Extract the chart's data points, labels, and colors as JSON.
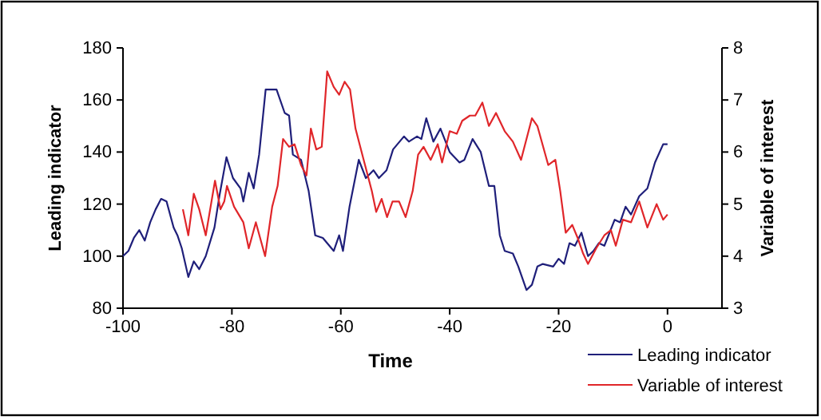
{
  "chart_data": {
    "type": "line",
    "xlabel": "Time",
    "ylabel": "Leading indicator",
    "y2label": "Variable of interest",
    "xlim": [
      -100,
      10
    ],
    "xticks": [
      -100,
      -80,
      -60,
      -40,
      -20,
      0
    ],
    "ylim": [
      80,
      180
    ],
    "yticks": [
      80,
      100,
      120,
      140,
      160,
      180
    ],
    "y2lim": [
      3,
      8
    ],
    "y2ticks": [
      3,
      4,
      5,
      6,
      7,
      8
    ],
    "grid": false,
    "legend": "bottom right",
    "line_style": "solid",
    "marker": "none",
    "series": [
      {
        "name": "Leading indicator",
        "color": "#1f1f7a",
        "x": [
          -100,
          -99,
          -98,
          -97,
          -96,
          -95,
          -94,
          -93,
          -92,
          -90.7,
          -90,
          -89.2,
          -88,
          -87,
          -86,
          -84.8,
          -83.2,
          -82.3,
          -81,
          -79.8,
          -78.4,
          -77.9,
          -76.9,
          -76,
          -75,
          -73.8,
          -71.8,
          -70.3,
          -69.5,
          -68.8,
          -67.3,
          -65.9,
          -64.7,
          -63.3,
          -61.3,
          -60.3,
          -59.6,
          -58.4,
          -56.7,
          -55.4,
          -54,
          -53,
          -51.6,
          -50.4,
          -48.4,
          -47.5,
          -46,
          -45.2,
          -44.3,
          -43,
          -41.7,
          -40,
          -38.2,
          -37.3,
          -35.8,
          -34.3,
          -32.8,
          -31.8,
          -30.8,
          -29.9,
          -28.4,
          -27.4,
          -25.9,
          -24.9,
          -23.9,
          -22.9,
          -21,
          -20,
          -19,
          -18,
          -17,
          -15.8,
          -14.6,
          -13.6,
          -12.6,
          -11.6,
          -9.7,
          -8.7,
          -7.7,
          -6.7,
          -5.2,
          -3.7,
          -2.3,
          -0.8,
          0
        ],
        "values": [
          100,
          102,
          107,
          110,
          106,
          113,
          118,
          122,
          121,
          111,
          108,
          103,
          92,
          98,
          95,
          100,
          111,
          123,
          138,
          130,
          126,
          121,
          132,
          126,
          139,
          164,
          164,
          155,
          154,
          139,
          137,
          125,
          108,
          107,
          102,
          108,
          102,
          119,
          137,
          130,
          133,
          130,
          133,
          141,
          146,
          144,
          146,
          145,
          153,
          144,
          149,
          140,
          136,
          137,
          145,
          140,
          127,
          127,
          108,
          102,
          101,
          96,
          87,
          89,
          96,
          97,
          96,
          99,
          97,
          105,
          104,
          109,
          100,
          102,
          105,
          104,
          114,
          113,
          119,
          116,
          123,
          126,
          136,
          143,
          143
        ]
      },
      {
        "name": "Variable of interest",
        "color": "#e0262a",
        "axis": "y2",
        "x": [
          -89,
          -88,
          -87,
          -86,
          -84.8,
          -83.1,
          -82.1,
          -81.4,
          -80.9,
          -79.6,
          -77.9,
          -76.9,
          -75.6,
          -73.9,
          -72.6,
          -71.6,
          -70.6,
          -69.5,
          -68.5,
          -67.3,
          -66.3,
          -65.5,
          -64.5,
          -63.5,
          -62.5,
          -61.3,
          -60.3,
          -59.3,
          -58.3,
          -57.3,
          -55.8,
          -54.3,
          -53.5,
          -52.5,
          -51.5,
          -50.5,
          -49.3,
          -48.1,
          -46.8,
          -45.8,
          -44.8,
          -43.5,
          -42.2,
          -41.4,
          -40,
          -38.7,
          -37.7,
          -36.3,
          -35.3,
          -34,
          -32.8,
          -31.5,
          -29.9,
          -28.4,
          -26.9,
          -24.9,
          -23.9,
          -21.9,
          -20.6,
          -19.7,
          -18.7,
          -17.5,
          -16.5,
          -15.5,
          -14.6,
          -13.1,
          -11.6,
          -10.4,
          -9.5,
          -8.2,
          -6.7,
          -5.2,
          -3.7,
          -2,
          -0.8,
          0
        ],
        "values": [
          4.9,
          4.4,
          5.2,
          4.9,
          4.4,
          5.45,
          4.9,
          5.05,
          5.35,
          4.95,
          4.65,
          4.15,
          4.65,
          4.0,
          4.95,
          5.35,
          6.25,
          6.1,
          6.15,
          5.75,
          5.55,
          6.45,
          6.05,
          6.1,
          7.55,
          7.25,
          7.1,
          7.35,
          7.2,
          6.45,
          5.85,
          5.25,
          4.85,
          5.1,
          4.75,
          5.05,
          5.05,
          4.75,
          5.25,
          5.95,
          6.1,
          5.85,
          6.15,
          5.8,
          6.4,
          6.35,
          6.6,
          6.7,
          6.7,
          6.95,
          6.5,
          6.75,
          6.4,
          6.2,
          5.85,
          6.65,
          6.5,
          5.75,
          5.85,
          5.25,
          4.45,
          4.6,
          4.35,
          4.05,
          3.85,
          4.15,
          4.4,
          4.5,
          4.2,
          4.7,
          4.65,
          5.05,
          4.55,
          5.0,
          4.7,
          4.8
        ]
      }
    ]
  }
}
